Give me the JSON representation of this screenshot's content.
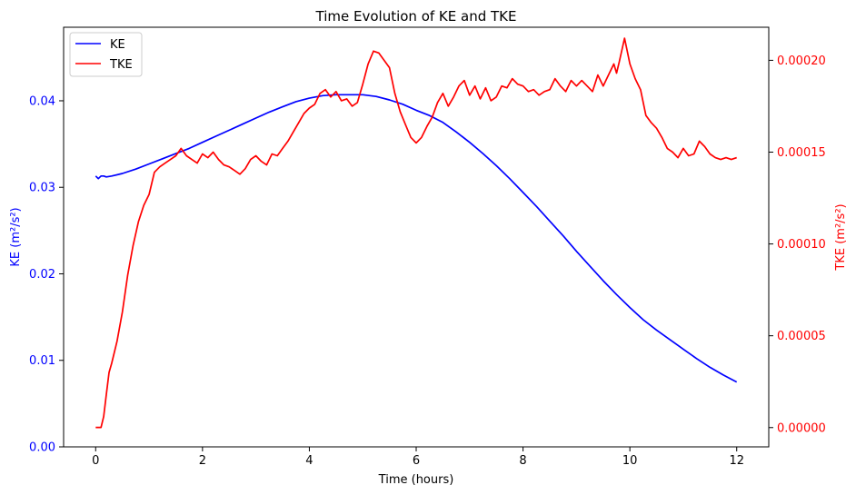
{
  "chart_data": {
    "type": "line",
    "title": "Time Evolution of KE and TKE",
    "xlabel": "Time (hours)",
    "ylabel_left": "KE (m²/s²)",
    "ylabel_right": "TKE (m²/s²)",
    "xlim": [
      -0.6,
      12.6
    ],
    "ylim_left": [
      0,
      0.0485
    ],
    "ylim_right": [
      -1.05e-05,
      0.000218
    ],
    "xticks": [
      0,
      2,
      4,
      6,
      8,
      10,
      12
    ],
    "xtick_labels": [
      "0",
      "2",
      "4",
      "6",
      "8",
      "10",
      "12"
    ],
    "yticks_left": [
      0,
      0.01,
      0.02,
      0.03,
      0.04
    ],
    "ytick_labels_left": [
      "0.00",
      "0.01",
      "0.02",
      "0.03",
      "0.04"
    ],
    "yticks_right": [
      0,
      5e-05,
      0.0001,
      0.00015,
      0.0002
    ],
    "ytick_labels_right": [
      "0.00000",
      "0.00005",
      "0.00010",
      "0.00015",
      "0.00020"
    ],
    "legend_position": "top-left",
    "grid": false,
    "series": [
      {
        "name": "KE",
        "axis": "left",
        "color": "#0000ff",
        "x": [
          0,
          0.05,
          0.1,
          0.15,
          0.2,
          0.3,
          0.5,
          0.75,
          1.0,
          1.25,
          1.5,
          1.75,
          2.0,
          2.25,
          2.5,
          2.75,
          3.0,
          3.25,
          3.5,
          3.75,
          4.0,
          4.25,
          4.5,
          4.75,
          5.0,
          5.25,
          5.5,
          5.75,
          6.0,
          6.25,
          6.5,
          6.75,
          7.0,
          7.25,
          7.5,
          7.75,
          8.0,
          8.25,
          8.5,
          8.75,
          9.0,
          9.25,
          9.5,
          9.75,
          10.0,
          10.25,
          10.5,
          10.75,
          11.0,
          11.25,
          11.5,
          11.75,
          12.0
        ],
        "y": [
          0.0313,
          0.031,
          0.0313,
          0.0313,
          0.0312,
          0.0313,
          0.0316,
          0.0321,
          0.0327,
          0.0333,
          0.0339,
          0.0345,
          0.0352,
          0.0359,
          0.0366,
          0.0373,
          0.038,
          0.0387,
          0.0393,
          0.0399,
          0.0403,
          0.0406,
          0.0407,
          0.0407,
          0.0407,
          0.0405,
          0.0401,
          0.0396,
          0.0389,
          0.0383,
          0.0375,
          0.0364,
          0.0352,
          0.0339,
          0.0325,
          0.031,
          0.0294,
          0.0278,
          0.0261,
          0.0244,
          0.0226,
          0.0209,
          0.0192,
          0.0176,
          0.0161,
          0.0147,
          0.0135,
          0.0124,
          0.0113,
          0.0102,
          0.0092,
          0.0083,
          0.0075
        ]
      },
      {
        "name": "TKE",
        "axis": "right",
        "color": "#ff0000",
        "x": [
          0,
          0.05,
          0.1,
          0.15,
          0.2,
          0.25,
          0.3,
          0.4,
          0.5,
          0.6,
          0.7,
          0.8,
          0.9,
          1.0,
          1.1,
          1.2,
          1.3,
          1.4,
          1.5,
          1.6,
          1.7,
          1.8,
          1.9,
          2.0,
          2.1,
          2.2,
          2.3,
          2.4,
          2.5,
          2.6,
          2.7,
          2.8,
          2.9,
          3.0,
          3.1,
          3.2,
          3.3,
          3.4,
          3.5,
          3.6,
          3.7,
          3.8,
          3.9,
          4.0,
          4.1,
          4.2,
          4.3,
          4.4,
          4.5,
          4.6,
          4.7,
          4.8,
          4.9,
          5.0,
          5.1,
          5.2,
          5.3,
          5.4,
          5.5,
          5.6,
          5.7,
          5.8,
          5.9,
          6.0,
          6.1,
          6.2,
          6.3,
          6.4,
          6.5,
          6.6,
          6.7,
          6.8,
          6.9,
          7.0,
          7.1,
          7.2,
          7.3,
          7.4,
          7.5,
          7.6,
          7.7,
          7.8,
          7.9,
          8.0,
          8.1,
          8.2,
          8.3,
          8.4,
          8.5,
          8.6,
          8.7,
          8.8,
          8.9,
          9.0,
          9.1,
          9.2,
          9.3,
          9.4,
          9.5,
          9.6,
          9.7,
          9.75,
          9.8,
          9.9,
          10.0,
          10.1,
          10.2,
          10.3,
          10.4,
          10.5,
          10.6,
          10.7,
          10.8,
          10.9,
          11.0,
          11.1,
          11.2,
          11.3,
          11.4,
          11.5,
          11.6,
          11.7,
          11.8,
          11.9,
          12.0
        ],
        "y": [
          1e-07,
          1e-07,
          1e-07,
          6e-06,
          1.8e-05,
          3e-05,
          3.5e-05,
          4.7e-05,
          6.3e-05,
          8.3e-05,
          9.9e-05,
          0.000112,
          0.000121,
          0.000127,
          0.000139,
          0.000142,
          0.000144,
          0.000146,
          0.000148,
          0.000152,
          0.000148,
          0.000146,
          0.000144,
          0.000149,
          0.000147,
          0.00015,
          0.000146,
          0.000143,
          0.000142,
          0.00014,
          0.000138,
          0.000141,
          0.000146,
          0.000148,
          0.000145,
          0.000143,
          0.000149,
          0.000148,
          0.000152,
          0.000156,
          0.000161,
          0.000166,
          0.000171,
          0.000174,
          0.000176,
          0.000182,
          0.000184,
          0.00018,
          0.000183,
          0.000178,
          0.000179,
          0.000175,
          0.000177,
          0.000187,
          0.000198,
          0.000205,
          0.000204,
          0.0002,
          0.000196,
          0.000182,
          0.000172,
          0.000165,
          0.000158,
          0.000155,
          0.000158,
          0.000164,
          0.000169,
          0.000177,
          0.000182,
          0.000175,
          0.00018,
          0.000186,
          0.000189,
          0.000181,
          0.000186,
          0.000179,
          0.000185,
          0.000178,
          0.00018,
          0.000186,
          0.000185,
          0.00019,
          0.000187,
          0.000186,
          0.000183,
          0.000184,
          0.000181,
          0.000183,
          0.000184,
          0.00019,
          0.000186,
          0.000183,
          0.000189,
          0.000186,
          0.000189,
          0.000186,
          0.000183,
          0.000192,
          0.000186,
          0.000192,
          0.000198,
          0.000193,
          0.000199,
          0.000212,
          0.000198,
          0.00019,
          0.000184,
          0.00017,
          0.000166,
          0.000163,
          0.000158,
          0.000152,
          0.00015,
          0.000147,
          0.000152,
          0.000148,
          0.000149,
          0.000156,
          0.000153,
          0.000149,
          0.000147,
          0.000146,
          0.000147,
          0.000146,
          0.000147
        ]
      }
    ]
  }
}
